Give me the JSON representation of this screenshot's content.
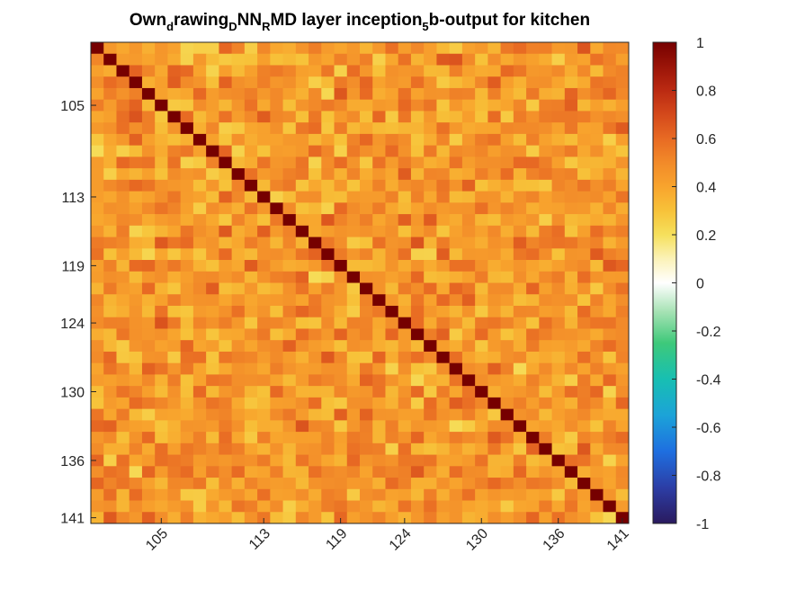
{
  "chart_data": {
    "type": "heatmap",
    "title": {
      "parts": [
        {
          "text": "Own",
          "sub": false
        },
        {
          "text": "d",
          "sub": true
        },
        {
          "text": "rawing",
          "sub": false
        },
        {
          "text": "D",
          "sub": true
        },
        {
          "text": "NN",
          "sub": false
        },
        {
          "text": "R",
          "sub": true
        },
        {
          "text": "MD layer inception",
          "sub": false
        },
        {
          "text": "5",
          "sub": true
        },
        {
          "text": "b-output for kitchen",
          "sub": false
        }
      ]
    },
    "row_range": [
      100,
      141
    ],
    "col_range": [
      100,
      141
    ],
    "x_ticks": [
      105,
      113,
      119,
      124,
      130,
      136,
      141
    ],
    "y_ticks": [
      105,
      113,
      119,
      124,
      130,
      136,
      141
    ],
    "x_tick_labels": [
      "105",
      "113",
      "119",
      "124",
      "130",
      "136",
      "141"
    ],
    "y_tick_labels": [
      "105",
      "113",
      "119",
      "124",
      "130",
      "136",
      "141"
    ],
    "x_tick_rotation_deg": 45,
    "colorbar": {
      "limits": [
        -1,
        1
      ],
      "ticks": [
        1,
        0.8,
        0.6,
        0.4,
        0.2,
        0,
        -0.2,
        -0.4,
        -0.6,
        -0.8,
        -1
      ],
      "tick_labels": [
        "1",
        "0.8",
        "0.6",
        "0.4",
        "0.2",
        "0",
        "-0.2",
        "-0.4",
        "-0.6",
        "-0.8",
        "-1"
      ],
      "colormap": [
        [
          -1.0,
          "#2a1a5e"
        ],
        [
          -0.85,
          "#2c3ea6"
        ],
        [
          -0.7,
          "#1e6fe0"
        ],
        [
          -0.55,
          "#1ca3d8"
        ],
        [
          -0.4,
          "#17bfb2"
        ],
        [
          -0.25,
          "#3ec97a"
        ],
        [
          -0.12,
          "#a6e2b4"
        ],
        [
          0.0,
          "#ffffff"
        ],
        [
          0.1,
          "#fbf2b8"
        ],
        [
          0.2,
          "#f6e05c"
        ],
        [
          0.3,
          "#f7c239"
        ],
        [
          0.4,
          "#f8a42d"
        ],
        [
          0.5,
          "#f28a29"
        ],
        [
          0.6,
          "#e86a23"
        ],
        [
          0.7,
          "#d4491b"
        ],
        [
          0.8,
          "#bb2a12"
        ],
        [
          0.9,
          "#9a1408"
        ],
        [
          1.0,
          "#760000"
        ]
      ]
    },
    "values_model": {
      "diagonal": 1,
      "off_diagonal_mean": 0.48,
      "off_diagonal_range": [
        0.2,
        0.68
      ],
      "note_symmetric": true
    }
  }
}
